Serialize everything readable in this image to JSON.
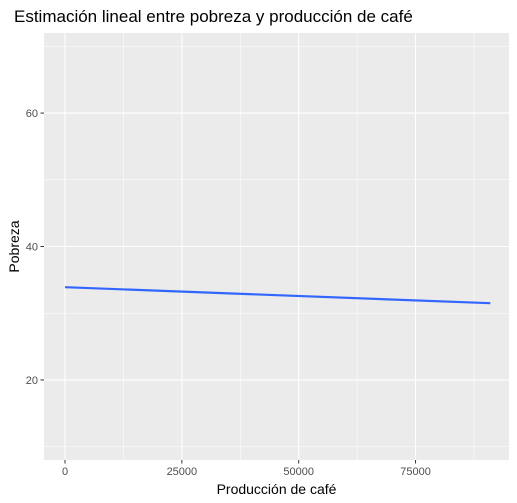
{
  "chart_data": {
    "type": "line",
    "title": "Estimación lineal entre pobreza y producción de café",
    "xlabel": "Producción de café",
    "ylabel": "Pobreza",
    "xlim": [
      -4500,
      95000
    ],
    "ylim": [
      8,
      72
    ],
    "x_ticks": [
      0,
      25000,
      50000,
      75000
    ],
    "x_tick_labels": [
      "0",
      "25000",
      "50000",
      "75000"
    ],
    "y_ticks": [
      20,
      40,
      60
    ],
    "y_tick_labels": [
      "20",
      "40",
      "60"
    ],
    "grid": true,
    "legend": "none",
    "series": [
      {
        "x": [
          0,
          91000
        ],
        "y": [
          33.9,
          31.5
        ]
      }
    ]
  },
  "colors": {
    "panel_background": "#ebebeb",
    "grid_major": "#ffffff",
    "line": "#3366ff",
    "tick_text": "#4d4d4d",
    "tick_mark": "#333333"
  }
}
